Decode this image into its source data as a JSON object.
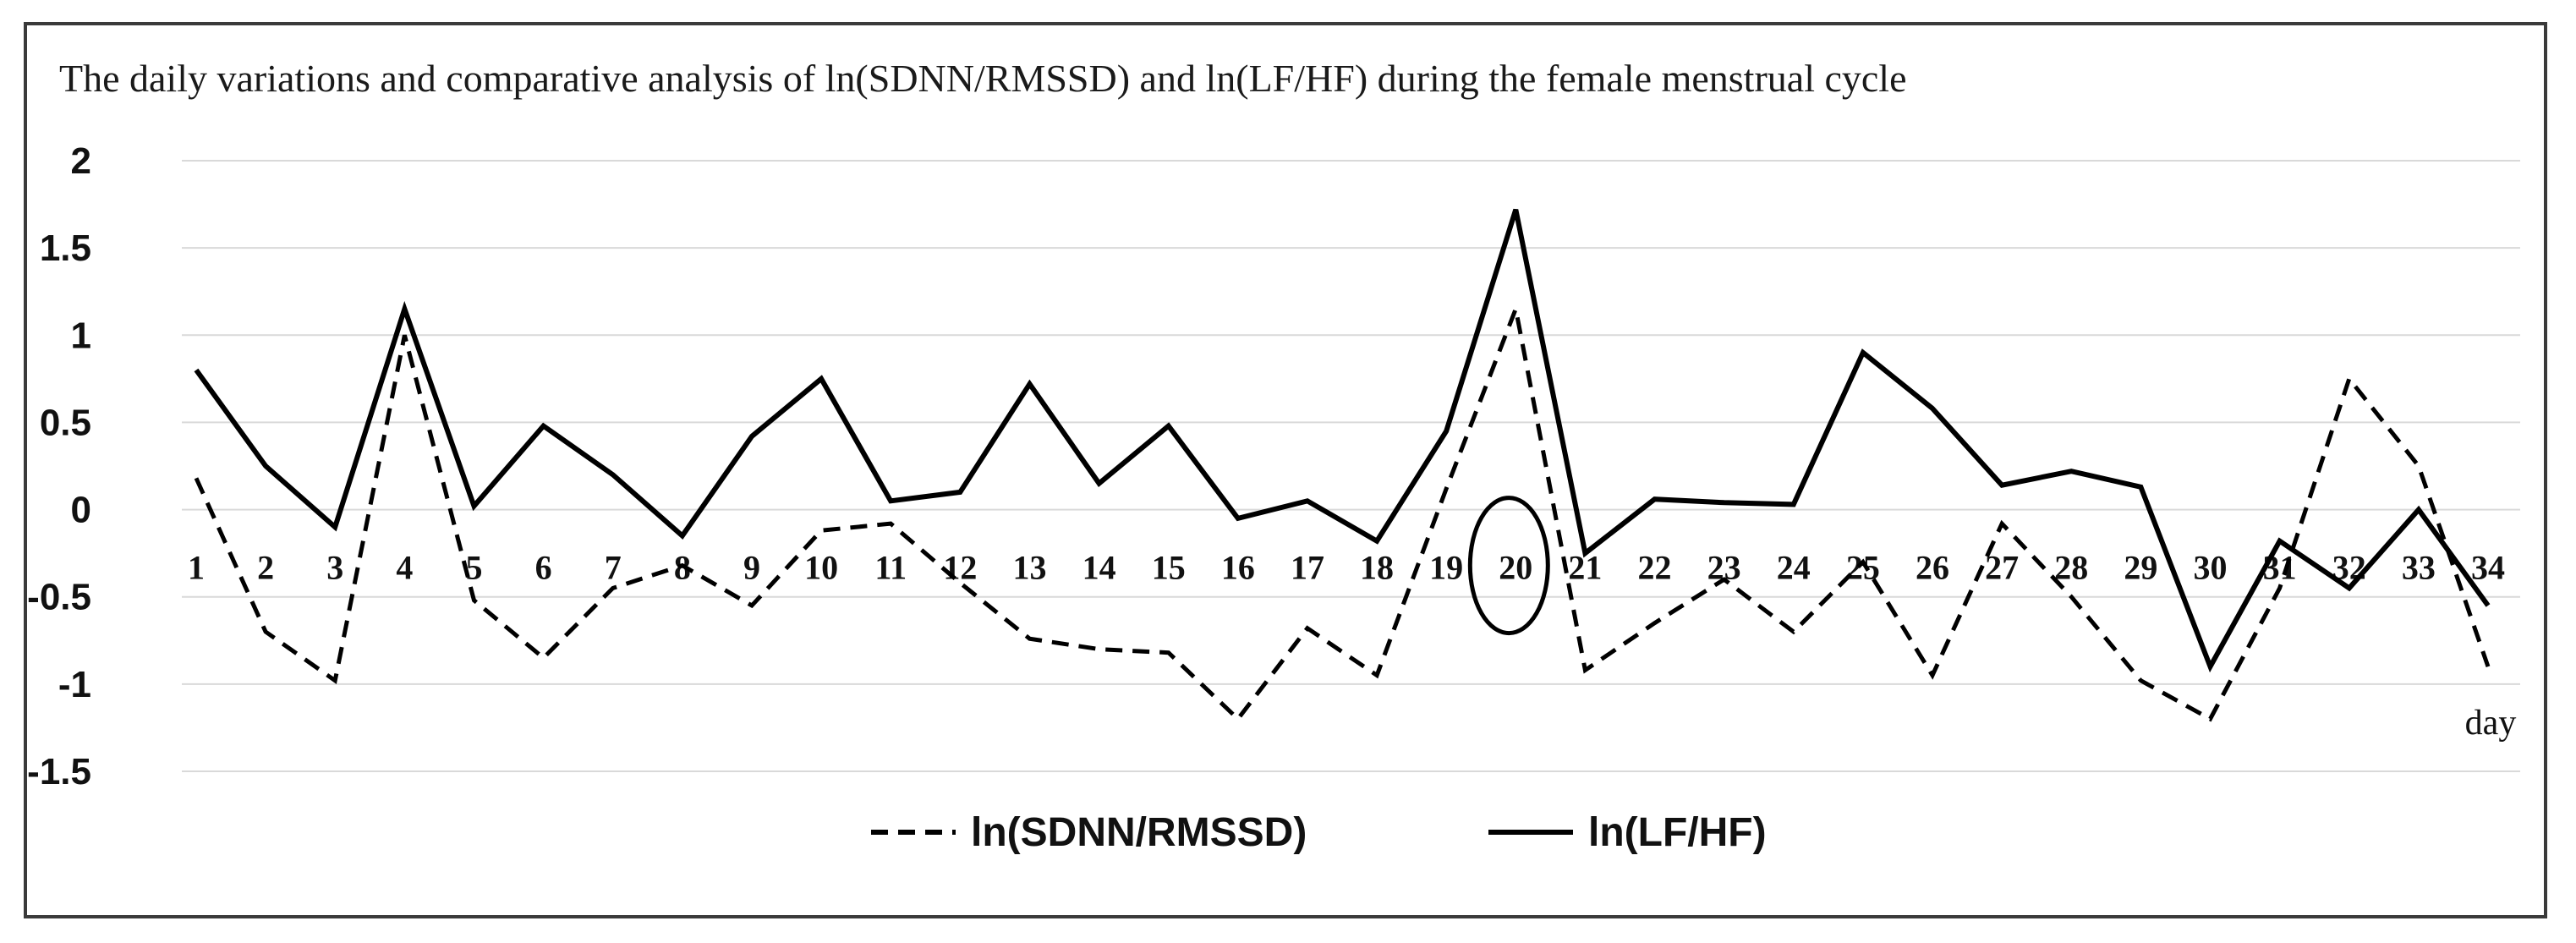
{
  "chart_data": {
    "type": "line",
    "title": "The daily variations and comparative analysis of ln(SDNN/RMSSD) and ln(LF/HF) during the female menstrual cycle",
    "xlabel": "day",
    "ylabel": "",
    "ylim": [
      -1.5,
      2
    ],
    "yticks": [
      "2",
      "1.5",
      "1",
      "0.5",
      "0",
      "-0.5",
      "-1",
      "-1.5"
    ],
    "x": [
      1,
      2,
      3,
      4,
      5,
      6,
      7,
      8,
      9,
      10,
      11,
      12,
      13,
      14,
      15,
      16,
      17,
      18,
      19,
      20,
      21,
      22,
      23,
      24,
      25,
      26,
      27,
      28,
      29,
      30,
      31,
      32,
      33,
      34
    ],
    "series": [
      {
        "name": "ln(SDNN/RMSSD)",
        "style": "dashed",
        "values": [
          0.18,
          -0.7,
          -0.98,
          1.0,
          -0.52,
          -0.85,
          -0.45,
          -0.32,
          -0.55,
          -0.12,
          -0.08,
          -0.42,
          -0.74,
          -0.8,
          -0.82,
          -1.2,
          -0.68,
          -0.95,
          0.12,
          1.15,
          -0.92,
          -0.65,
          -0.4,
          -0.7,
          -0.3,
          -0.95,
          -0.08,
          -0.5,
          -0.98,
          -1.2,
          -0.45,
          0.75,
          0.25,
          -0.9
        ]
      },
      {
        "name": "ln(LF/HF)",
        "style": "solid",
        "values": [
          0.8,
          0.25,
          -0.1,
          1.15,
          0.02,
          0.48,
          0.2,
          -0.15,
          0.42,
          0.75,
          0.05,
          0.1,
          0.72,
          0.15,
          0.48,
          -0.05,
          0.05,
          -0.18,
          0.45,
          1.72,
          -0.25,
          0.06,
          0.04,
          0.03,
          0.9,
          0.58,
          0.14,
          0.22,
          0.13,
          -0.9,
          -0.18,
          -0.45,
          0.0,
          -0.55
        ]
      }
    ],
    "highlight_day": 20,
    "grid": true,
    "legend_position": "bottom"
  }
}
